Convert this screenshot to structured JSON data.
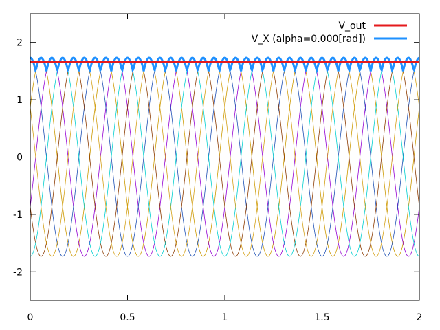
{
  "chart_data": {
    "type": "line",
    "title": "",
    "xlabel": "",
    "ylabel": "",
    "xlim": [
      0,
      2
    ],
    "ylim": [
      -2.5,
      2.5
    ],
    "x_ticks": [
      {
        "value": 0,
        "label": "0"
      },
      {
        "value": 0.5,
        "label": "0.5"
      },
      {
        "value": 1,
        "label": "1"
      },
      {
        "value": 1.5,
        "label": "1.5"
      },
      {
        "value": 2,
        "label": "2"
      }
    ],
    "y_ticks": [
      {
        "value": -2,
        "label": "-2"
      },
      {
        "value": -1,
        "label": "-1"
      },
      {
        "value": 0,
        "label": "0"
      },
      {
        "value": 1,
        "label": "1"
      },
      {
        "value": 2,
        "label": "2"
      }
    ],
    "grid": false,
    "legend_position": "top-right",
    "legend": [
      {
        "label": "V_out",
        "color": "#e41a1c"
      },
      {
        "label": "V_X (alpha=0.000[rad])",
        "color": "#1e90ff"
      }
    ],
    "v_out_level": 1.654,
    "sine_amplitude": 1.732,
    "sine_frequency": 3,
    "phase_curves": [
      {
        "color": "#cc9900",
        "phase_deg": 30
      },
      {
        "color": "#9400d3",
        "phase_deg": -30
      },
      {
        "color": "#1e50b4",
        "phase_deg": 90
      },
      {
        "color": "#8b3a00",
        "phase_deg": 210
      },
      {
        "color": "#00cfcf",
        "phase_deg": -90
      },
      {
        "color": "#d4a017",
        "phase_deg": 150
      }
    ]
  }
}
